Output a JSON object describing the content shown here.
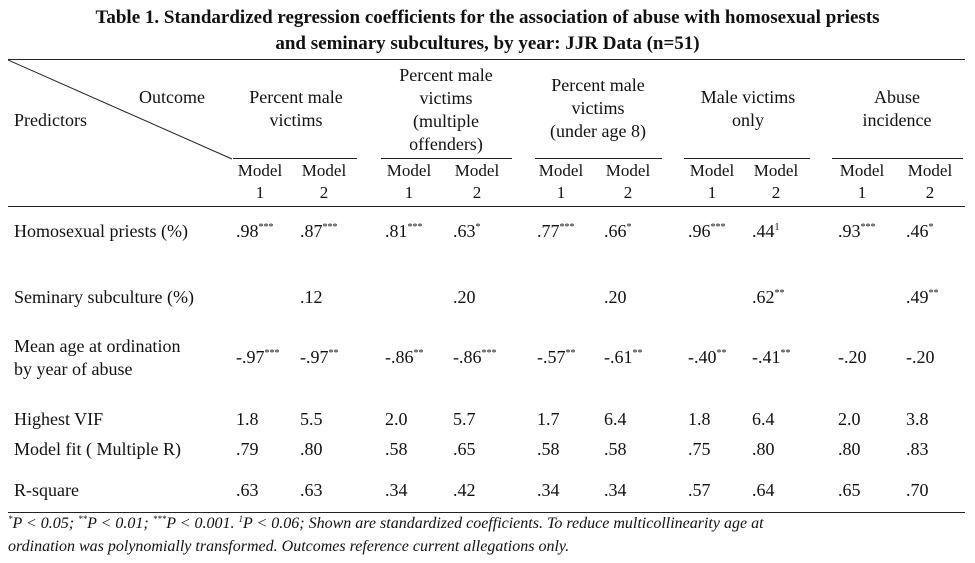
{
  "title_line1": "Table 1. Standardized regression coefficients for the association of abuse with homosexual priests",
  "title_line2": "and seminary subcultures, by year: JJR Data (n=51)",
  "corner": {
    "outcome": "Outcome",
    "predictors": "Predictors"
  },
  "outcomes": [
    [
      "Percent male",
      "victims"
    ],
    [
      "Percent male",
      "victims",
      "(multiple",
      "offenders)"
    ],
    [
      "Percent male",
      "victims",
      "(under age 8)"
    ],
    [
      "Male victims",
      "only"
    ],
    [
      "Abuse",
      "incidence"
    ]
  ],
  "model_word": "Model",
  "model_nums": [
    "1",
    "2"
  ],
  "rows": [
    {
      "label": [
        "Homosexual priests (%)"
      ],
      "cells": [
        [
          ".98",
          "***"
        ],
        [
          ".87",
          "***"
        ],
        [
          ".81",
          "***"
        ],
        [
          ".63",
          "*"
        ],
        [
          ".77",
          "***"
        ],
        [
          ".66",
          "*"
        ],
        [
          ".96",
          "***"
        ],
        [
          ".44",
          "1"
        ],
        [
          ".93",
          "***"
        ],
        [
          ".46",
          "*"
        ]
      ]
    },
    {
      "label": [
        "Seminary subculture (%)"
      ],
      "cells": [
        [
          "",
          ""
        ],
        [
          ".12",
          ""
        ],
        [
          "",
          ""
        ],
        [
          ".20",
          ""
        ],
        [
          "",
          ""
        ],
        [
          ".20",
          ""
        ],
        [
          "",
          ""
        ],
        [
          ".62",
          "**"
        ],
        [
          "",
          ""
        ],
        [
          ".49",
          "**"
        ]
      ]
    },
    {
      "label": [
        "Mean age at ordination",
        "by year of abuse"
      ],
      "cells": [
        [
          "-.97",
          "***"
        ],
        [
          "-.97",
          "**"
        ],
        [
          "-.86",
          "**"
        ],
        [
          "-.86",
          "***"
        ],
        [
          "-.57",
          "**"
        ],
        [
          "-.61",
          "**"
        ],
        [
          "-.40",
          "**"
        ],
        [
          "-.41",
          "**"
        ],
        [
          "-.20",
          ""
        ],
        [
          "-.20",
          ""
        ]
      ]
    },
    {
      "label": [
        "Highest VIF"
      ],
      "cells": [
        [
          "1.8",
          ""
        ],
        [
          "5.5",
          ""
        ],
        [
          "2.0",
          ""
        ],
        [
          "5.7",
          ""
        ],
        [
          "1.7",
          ""
        ],
        [
          "6.4",
          ""
        ],
        [
          "1.8",
          ""
        ],
        [
          "6.4",
          ""
        ],
        [
          "2.0",
          ""
        ],
        [
          "3.8",
          ""
        ]
      ]
    },
    {
      "label": [
        "Model fit ( Multiple R)"
      ],
      "cells": [
        [
          ".79",
          ""
        ],
        [
          ".80",
          ""
        ],
        [
          ".58",
          ""
        ],
        [
          ".65",
          ""
        ],
        [
          ".58",
          ""
        ],
        [
          ".58",
          ""
        ],
        [
          ".75",
          ""
        ],
        [
          ".80",
          ""
        ],
        [
          ".80",
          ""
        ],
        [
          ".83",
          ""
        ]
      ]
    },
    {
      "label": [
        "R-square"
      ],
      "cells": [
        [
          ".63",
          ""
        ],
        [
          ".63",
          ""
        ],
        [
          ".34",
          ""
        ],
        [
          ".42",
          ""
        ],
        [
          ".34",
          ""
        ],
        [
          ".34",
          ""
        ],
        [
          ".57",
          ""
        ],
        [
          ".64",
          ""
        ],
        [
          ".65",
          ""
        ],
        [
          ".70",
          ""
        ]
      ]
    }
  ],
  "footnote": {
    "s1": "*",
    "t1": "P < 0.05; ",
    "s2": "**",
    "t2": "P < 0.01; ",
    "s3": "***",
    "t3": "P < 0.001. ",
    "s4": "1",
    "t4": "P < 0.06;  Shown are standardized coefficients.  To reduce multicollinearity age at",
    "line2": "ordination was polynomially transformed.  Outcomes reference current allegations only."
  }
}
